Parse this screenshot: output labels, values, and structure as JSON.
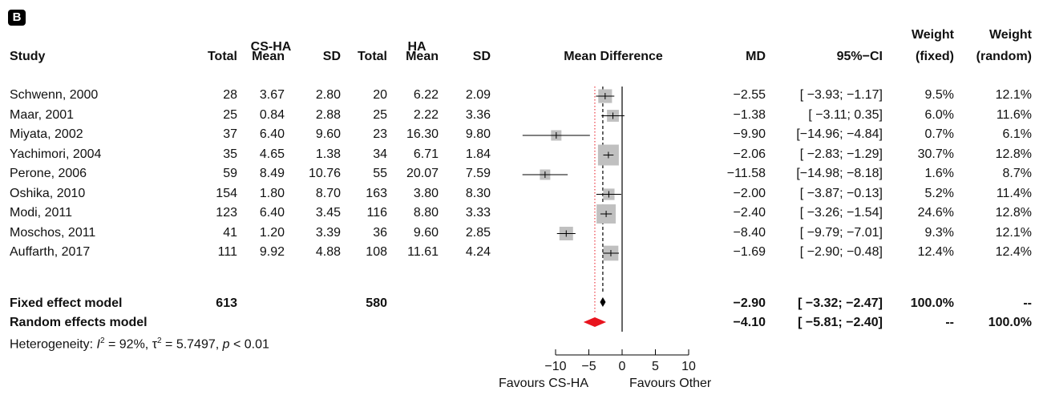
{
  "panel_label": "B",
  "headers": {
    "study": "Study",
    "group1": "CS-HA",
    "group2": "HA",
    "total": "Total",
    "mean": "Mean",
    "sd": "SD",
    "plot": "Mean Difference",
    "md": "MD",
    "ci": "95%−CI",
    "weight_top": "Weight",
    "weight_fixed": "(fixed)",
    "weight_random": "(random)"
  },
  "rows": [
    {
      "study": "Schwenn, 2000",
      "t1": "28",
      "m1": "3.67",
      "sd1": "2.80",
      "t2": "20",
      "m2": "6.22",
      "sd2": "2.09",
      "md": "−2.55",
      "ci": "[ −3.93; −1.17]",
      "wf": "9.5%",
      "wr": "12.1%"
    },
    {
      "study": "Maar, 2001",
      "t1": "25",
      "m1": "0.84",
      "sd1": "2.88",
      "t2": "25",
      "m2": "2.22",
      "sd2": "3.36",
      "md": "−1.38",
      "ci": "[ −3.11;  0.35]",
      "wf": "6.0%",
      "wr": "11.6%"
    },
    {
      "study": "Miyata, 2002",
      "t1": "37",
      "m1": "6.40",
      "sd1": "9.60",
      "t2": "23",
      "m2": "16.30",
      "sd2": "9.80",
      "md": "−9.90",
      "ci": "[−14.96; −4.84]",
      "wf": "0.7%",
      "wr": "6.1%"
    },
    {
      "study": "Yachimori, 2004",
      "t1": "35",
      "m1": "4.65",
      "sd1": "1.38",
      "t2": "34",
      "m2": "6.71",
      "sd2": "1.84",
      "md": "−2.06",
      "ci": "[ −2.83; −1.29]",
      "wf": "30.7%",
      "wr": "12.8%"
    },
    {
      "study": "Perone, 2006",
      "t1": "59",
      "m1": "8.49",
      "sd1": "10.76",
      "t2": "55",
      "m2": "20.07",
      "sd2": "7.59",
      "md": "−11.58",
      "ci": "[−14.98; −8.18]",
      "wf": "1.6%",
      "wr": "8.7%"
    },
    {
      "study": "Oshika, 2010",
      "t1": "154",
      "m1": "1.80",
      "sd1": "8.70",
      "t2": "163",
      "m2": "3.80",
      "sd2": "8.30",
      "md": "−2.00",
      "ci": "[ −3.87; −0.13]",
      "wf": "5.2%",
      "wr": "11.4%"
    },
    {
      "study": "Modi, 2011",
      "t1": "123",
      "m1": "6.40",
      "sd1": "3.45",
      "t2": "116",
      "m2": "8.80",
      "sd2": "3.33",
      "md": "−2.40",
      "ci": "[ −3.26; −1.54]",
      "wf": "24.6%",
      "wr": "12.8%"
    },
    {
      "study": "Moschos, 2011",
      "t1": "41",
      "m1": "1.20",
      "sd1": "3.39",
      "t2": "36",
      "m2": "9.60",
      "sd2": "2.85",
      "md": "−8.40",
      "ci": "[ −9.79; −7.01]",
      "wf": "9.3%",
      "wr": "12.1%"
    },
    {
      "study": "Auffarth, 2017",
      "t1": "111",
      "m1": "9.92",
      "sd1": "4.88",
      "t2": "108",
      "m2": "11.61",
      "sd2": "4.24",
      "md": "−1.69",
      "ci": "[ −2.90; −0.48]",
      "wf": "12.4%",
      "wr": "12.4%"
    }
  ],
  "fixed": {
    "label": "Fixed effect model",
    "t1": "613",
    "t2": "580",
    "md": "−2.90",
    "ci": "[ −3.32; −2.47]",
    "wf": "100.0%",
    "wr": "--"
  },
  "random": {
    "label": "Random effects model",
    "md": "−4.10",
    "ci": "[ −5.81; −2.40]",
    "wf": "--",
    "wr": "100.0%"
  },
  "heterogeneity": {
    "prefix": "Heterogeneity: ",
    "i2": "I",
    "i2_rest": " = 92%, ",
    "tau": "τ",
    "tau_rest": " = 5.7497, ",
    "p": "p",
    "p_rest": " < 0.01"
  },
  "axis_labels": {
    "left": "Favours CS-HA",
    "right": "Favours Other"
  },
  "chart_data": {
    "type": "forest",
    "xlim": [
      -10,
      10
    ],
    "ticks": [
      -10,
      -5,
      0,
      5,
      10
    ],
    "studies": [
      {
        "name": "Schwenn, 2000",
        "md": -2.55,
        "lo": -3.93,
        "hi": -1.17,
        "weight_fixed": 9.5
      },
      {
        "name": "Maar, 2001",
        "md": -1.38,
        "lo": -3.11,
        "hi": 0.35,
        "weight_fixed": 6.0
      },
      {
        "name": "Miyata, 2002",
        "md": -9.9,
        "lo": -14.96,
        "hi": -4.84,
        "weight_fixed": 0.7
      },
      {
        "name": "Yachimori, 2004",
        "md": -2.06,
        "lo": -2.83,
        "hi": -1.29,
        "weight_fixed": 30.7
      },
      {
        "name": "Perone, 2006",
        "md": -11.58,
        "lo": -14.98,
        "hi": -8.18,
        "weight_fixed": 1.6
      },
      {
        "name": "Oshika, 2010",
        "md": -2.0,
        "lo": -3.87,
        "hi": -0.13,
        "weight_fixed": 5.2
      },
      {
        "name": "Modi, 2011",
        "md": -2.4,
        "lo": -3.26,
        "hi": -1.54,
        "weight_fixed": 24.6
      },
      {
        "name": "Moschos, 2011",
        "md": -8.4,
        "lo": -9.79,
        "hi": -7.01,
        "weight_fixed": 9.3
      },
      {
        "name": "Auffarth, 2017",
        "md": -1.69,
        "lo": -2.9,
        "hi": -0.48,
        "weight_fixed": 12.4
      }
    ],
    "fixed": {
      "md": -2.9,
      "lo": -3.32,
      "hi": -2.47
    },
    "random": {
      "md": -4.1,
      "lo": -5.81,
      "hi": -2.4
    },
    "colors": {
      "square": "#c0c0c0",
      "fixed_diamond": "#000000",
      "random_diamond": "#e8141e",
      "random_line": "#e8141e"
    }
  }
}
